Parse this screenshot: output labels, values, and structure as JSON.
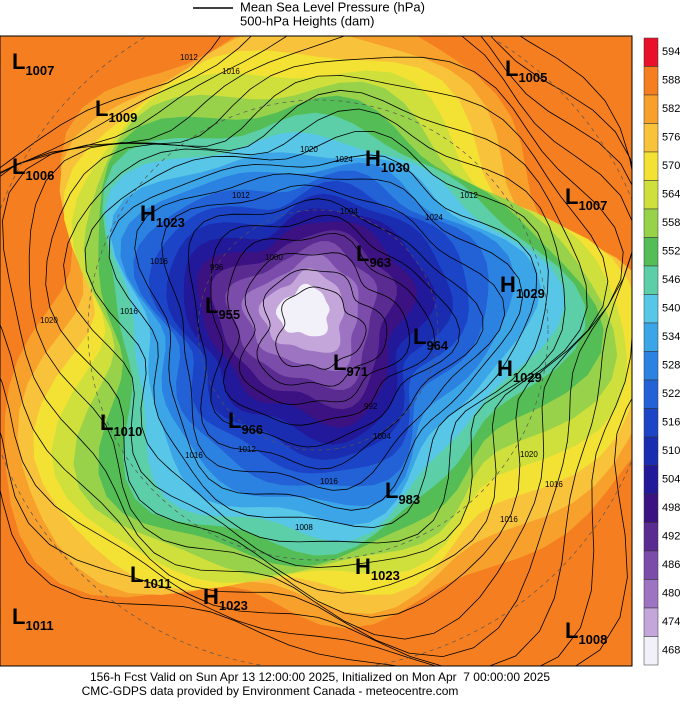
{
  "legend": [
    "Mean Sea Level Pressure (hPa)",
    "500-hPa Heights (dam)"
  ],
  "colorbar": {
    "ticks": [
      594,
      588,
      582,
      576,
      570,
      564,
      558,
      552,
      546,
      540,
      534,
      528,
      522,
      516,
      510,
      504,
      498,
      492,
      486,
      480,
      474,
      468
    ],
    "colors": [
      "#e8102a",
      "#f57f20",
      "#f8a02c",
      "#f8c23a",
      "#f3e233",
      "#cfe03c",
      "#98d24a",
      "#55bd55",
      "#5ccfa8",
      "#58c6e6",
      "#3ca5e8",
      "#2c82e0",
      "#2262d6",
      "#1c44c6",
      "#1a2cb0",
      "#22189a",
      "#3c1282",
      "#5a2c92",
      "#7c4caa",
      "#9c74c2",
      "#c4a6da",
      "#f2f0f8"
    ]
  },
  "pressure_centers": [
    {
      "type": "L",
      "value": "1007"
    },
    {
      "type": "L",
      "value": "1009"
    },
    {
      "type": "L",
      "value": "1006"
    },
    {
      "type": "H",
      "value": "1023"
    },
    {
      "type": "H",
      "value": "1030"
    },
    {
      "type": "L",
      "value": "1005"
    },
    {
      "type": "L",
      "value": "1007"
    },
    {
      "type": "L",
      "value": "963"
    },
    {
      "type": "H",
      "value": "1029"
    },
    {
      "type": "L",
      "value": "964"
    },
    {
      "type": "H",
      "value": "1029"
    },
    {
      "type": "L",
      "value": "955"
    },
    {
      "type": "L",
      "value": "971"
    },
    {
      "type": "L",
      "value": "1010"
    },
    {
      "type": "L",
      "value": "966"
    },
    {
      "type": "L",
      "value": "983"
    },
    {
      "type": "L",
      "value": "1011"
    },
    {
      "type": "H",
      "value": "1023"
    },
    {
      "type": "H",
      "value": "1023"
    },
    {
      "type": "L",
      "value": "1011"
    },
    {
      "type": "L",
      "value": "1008"
    }
  ],
  "contour_labels": [
    "1012",
    "1016",
    "1020",
    "1024",
    "1012",
    "1016",
    "1004",
    "996",
    "1000",
    "1016",
    "1020",
    "1016",
    "1008",
    "1012",
    "1016",
    "1020",
    "1016",
    "992",
    "1004",
    "1024",
    "1016",
    "1012"
  ],
  "footer": [
    "156-h Fcst Valid on Sun Apr 13 12:00:00 2025, Initialized on Mon Apr  7 00:00:00 2025",
    "CMC-GDPS data provided by Environment Canada - meteocentre.com"
  ]
}
